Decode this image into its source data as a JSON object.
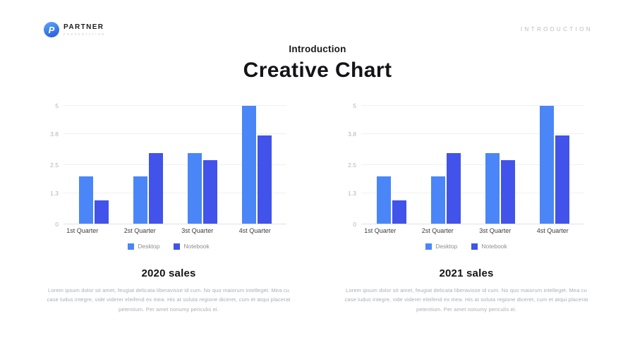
{
  "header": {
    "logo_letter": "P",
    "logo_text": "PARTNER",
    "logo_subtext": "PRESENTATION",
    "section_label": "INTRODUCTION"
  },
  "title": {
    "kicker": "Introduction",
    "main": "Creative Chart"
  },
  "palette": {
    "desktop_blue": "#4a86f7",
    "notebook_blue": "#4153ea",
    "gridline": "#f0f0f2",
    "axis_text": "#b4b4b8"
  },
  "sections": [
    {
      "title": "2020 sales",
      "description": "Lorem ipsum dolor sit amet, feugiat delicata liberavisse id cum. No quo maiorum intelleget. Mea cu case ludus integre, vide viderer eleifend ex mea. His at soluta regione diceret, cum et atqui placerat petentium. Per amet nonumy periculis ei."
    },
    {
      "title": "2021 sales",
      "description": "Lorem ipsum dolor sit amet, feugiat delicata liberavisse id cum. No quo maiorum intelleget. Mea cu case ludus integre, vide viderer eleifend ex mea. His at soluta regione diceret, cum et atqui placerat petentium. Per amet nonumy periculis ei."
    }
  ],
  "chart_data": [
    {
      "type": "bar",
      "title": "2020 sales",
      "categories": [
        "1st Quarter",
        "2st Quarter",
        "3st Quarter",
        "4st Quarter"
      ],
      "series": [
        {
          "name": "Desktop",
          "color": "#4a86f7",
          "values": [
            2,
            2,
            3,
            5
          ]
        },
        {
          "name": "Notebook",
          "color": "#4153ea",
          "values": [
            1,
            3,
            2.7,
            3.75
          ]
        }
      ],
      "ylim": [
        0,
        5
      ],
      "yticks": [
        0,
        1.3,
        2.5,
        3.8,
        5
      ],
      "grid": true,
      "legend_position": "bottom"
    },
    {
      "type": "bar",
      "title": "2021 sales",
      "categories": [
        "1st Quarter",
        "2st Quarter",
        "3st Quarter",
        "4st Quarter"
      ],
      "series": [
        {
          "name": "Desktop",
          "color": "#4a86f7",
          "values": [
            2,
            2,
            3,
            5
          ]
        },
        {
          "name": "Notebook",
          "color": "#4153ea",
          "values": [
            1,
            3,
            2.7,
            3.75
          ]
        }
      ],
      "ylim": [
        0,
        5
      ],
      "yticks": [
        0,
        1.3,
        2.5,
        3.8,
        5
      ],
      "grid": true,
      "legend_position": "bottom"
    }
  ]
}
